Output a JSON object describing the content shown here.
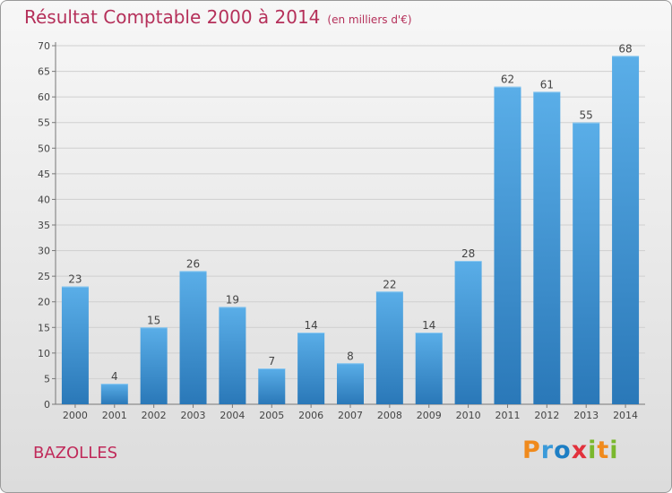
{
  "header": {
    "title": "Résultat Comptable 2000 à 2014",
    "subtitle": "(en milliers d'€)"
  },
  "town": "BAZOLLES",
  "logo": {
    "text": "Proxiti",
    "letters": [
      {
        "ch": "P",
        "color": "#f08a1c"
      },
      {
        "ch": "r",
        "color": "#3a9ad9"
      },
      {
        "ch": "o",
        "color": "#1d7ec4"
      },
      {
        "ch": "x",
        "color": "#e2313c"
      },
      {
        "ch": "i",
        "color": "#7ab82d"
      },
      {
        "ch": "t",
        "color": "#f08a1c"
      },
      {
        "ch": "i",
        "color": "#7ab82d"
      }
    ]
  },
  "colors": {
    "title": "#b5305a",
    "bar_top": "#5aaee8",
    "bar_bottom": "#2a78b8"
  },
  "chart_data": {
    "type": "bar",
    "title": "Résultat Comptable 2000 à 2014",
    "subtitle": "(en milliers d'€)",
    "xlabel": "",
    "ylabel": "",
    "categories": [
      "2000",
      "2001",
      "2002",
      "2003",
      "2004",
      "2005",
      "2006",
      "2007",
      "2008",
      "2009",
      "2010",
      "2011",
      "2012",
      "2013",
      "2014"
    ],
    "values": [
      23,
      4,
      15,
      26,
      19,
      7,
      14,
      8,
      22,
      14,
      28,
      62,
      61,
      55,
      68
    ],
    "ylim": [
      0,
      70
    ],
    "yticks": [
      0,
      5,
      10,
      15,
      20,
      25,
      30,
      35,
      40,
      45,
      50,
      55,
      60,
      65,
      70
    ],
    "grid": true,
    "legend": "none"
  }
}
